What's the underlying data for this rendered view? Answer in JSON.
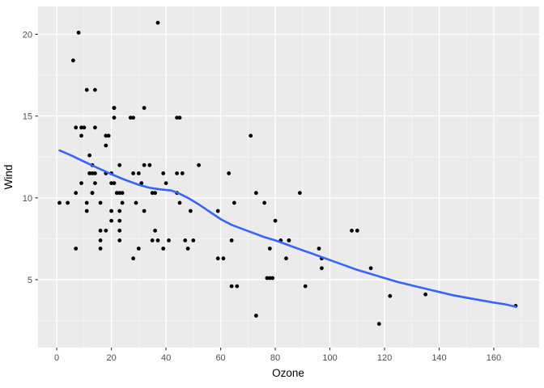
{
  "chart_data": {
    "type": "scatter",
    "title": "",
    "xlabel": "Ozone",
    "ylabel": "Wind",
    "xlim": [
      -6.85,
      176.6
    ],
    "ylim": [
      0.85,
      21.7
    ],
    "x_ticks": [
      0,
      20,
      40,
      60,
      80,
      100,
      120,
      140,
      160
    ],
    "x_minor_ticks": [
      10,
      30,
      50,
      70,
      90,
      110,
      130,
      150,
      170
    ],
    "y_ticks": [
      5,
      10,
      15,
      20
    ],
    "y_minor_ticks": [
      2.5,
      7.5,
      12.5,
      17.5
    ],
    "grid": true,
    "legend": "none",
    "points": [
      [
        41,
        7.4
      ],
      [
        36,
        8.0
      ],
      [
        12,
        12.6
      ],
      [
        18,
        11.5
      ],
      [
        28,
        14.9
      ],
      [
        23,
        8.6
      ],
      [
        19,
        13.8
      ],
      [
        8,
        20.1
      ],
      [
        7,
        6.9
      ],
      [
        16,
        9.7
      ],
      [
        11,
        9.2
      ],
      [
        14,
        10.9
      ],
      [
        18,
        13.2
      ],
      [
        14,
        11.5
      ],
      [
        34,
        12.0
      ],
      [
        6,
        18.4
      ],
      [
        30,
        11.5
      ],
      [
        11,
        9.7
      ],
      [
        1,
        9.7
      ],
      [
        11,
        16.6
      ],
      [
        4,
        9.7
      ],
      [
        32,
        12.0
      ],
      [
        23,
        12.0
      ],
      [
        45,
        14.9
      ],
      [
        115,
        5.7
      ],
      [
        37,
        7.4
      ],
      [
        29,
        9.7
      ],
      [
        71,
        13.8
      ],
      [
        39,
        11.5
      ],
      [
        23,
        8.0
      ],
      [
        21,
        14.9
      ],
      [
        37,
        20.7
      ],
      [
        20,
        9.2
      ],
      [
        12,
        11.5
      ],
      [
        13,
        10.3
      ],
      [
        135,
        4.1
      ],
      [
        49,
        9.2
      ],
      [
        32,
        9.2
      ],
      [
        64,
        4.6
      ],
      [
        40,
        10.9
      ],
      [
        77,
        5.1
      ],
      [
        97,
        6.3
      ],
      [
        97,
        5.7
      ],
      [
        85,
        7.4
      ],
      [
        10,
        14.3
      ],
      [
        27,
        14.9
      ],
      [
        7,
        14.3
      ],
      [
        48,
        6.9
      ],
      [
        35,
        10.3
      ],
      [
        61,
        6.3
      ],
      [
        79,
        5.1
      ],
      [
        63,
        11.5
      ],
      [
        16,
        6.9
      ],
      [
        80,
        8.6
      ],
      [
        108,
        8.0
      ],
      [
        20,
        8.6
      ],
      [
        52,
        12.0
      ],
      [
        82,
        7.4
      ],
      [
        50,
        7.4
      ],
      [
        64,
        7.4
      ],
      [
        59,
        9.2
      ],
      [
        39,
        6.9
      ],
      [
        9,
        13.8
      ],
      [
        16,
        7.4
      ],
      [
        78,
        6.9
      ],
      [
        35,
        7.4
      ],
      [
        66,
        4.6
      ],
      [
        122,
        4.0
      ],
      [
        89,
        10.3
      ],
      [
        110,
        8.0
      ],
      [
        44,
        11.5
      ],
      [
        28,
        11.5
      ],
      [
        65,
        9.7
      ],
      [
        22,
        10.3
      ],
      [
        59,
        6.3
      ],
      [
        23,
        7.4
      ],
      [
        31,
        10.9
      ],
      [
        44,
        10.3
      ],
      [
        21,
        15.5
      ],
      [
        9,
        14.3
      ],
      [
        45,
        9.7
      ],
      [
        168,
        3.4
      ],
      [
        73,
        10.3
      ],
      [
        76,
        9.7
      ],
      [
        118,
        2.3
      ],
      [
        84,
        6.3
      ],
      [
        85,
        7.4
      ],
      [
        96,
        6.9
      ],
      [
        78,
        5.1
      ],
      [
        73,
        2.8
      ],
      [
        91,
        4.6
      ],
      [
        47,
        7.4
      ],
      [
        32,
        15.5
      ],
      [
        20,
        10.9
      ],
      [
        23,
        10.3
      ],
      [
        21,
        10.9
      ],
      [
        24,
        9.7
      ],
      [
        44,
        14.9
      ],
      [
        21,
        15.5
      ],
      [
        28,
        6.3
      ],
      [
        9,
        10.9
      ],
      [
        13,
        11.5
      ],
      [
        46,
        11.5
      ],
      [
        18,
        13.8
      ],
      [
        13,
        10.3
      ],
      [
        24,
        10.3
      ],
      [
        16,
        8.0
      ],
      [
        13,
        12.0
      ],
      [
        23,
        9.2
      ],
      [
        36,
        10.3
      ],
      [
        7,
        10.3
      ],
      [
        14,
        16.6
      ],
      [
        30,
        6.9
      ],
      [
        14,
        14.3
      ],
      [
        18,
        8.0
      ],
      [
        20,
        11.5
      ]
    ],
    "smooth_line": {
      "name": "loess-smooth",
      "points": [
        [
          1,
          12.9
        ],
        [
          5,
          12.62
        ],
        [
          10,
          12.22
        ],
        [
          15,
          11.83
        ],
        [
          20,
          11.45
        ],
        [
          25,
          11.1
        ],
        [
          30,
          10.8
        ],
        [
          34,
          10.62
        ],
        [
          38,
          10.52
        ],
        [
          42,
          10.45
        ],
        [
          45,
          10.25
        ],
        [
          48,
          10.0
        ],
        [
          52,
          9.6
        ],
        [
          56,
          9.15
        ],
        [
          60,
          8.7
        ],
        [
          64,
          8.35
        ],
        [
          68,
          8.1
        ],
        [
          72,
          7.85
        ],
        [
          76,
          7.6
        ],
        [
          80,
          7.4
        ],
        [
          85,
          7.1
        ],
        [
          90,
          6.8
        ],
        [
          95,
          6.5
        ],
        [
          100,
          6.2
        ],
        [
          105,
          5.9
        ],
        [
          110,
          5.6
        ],
        [
          115,
          5.35
        ],
        [
          120,
          5.1
        ],
        [
          125,
          4.85
        ],
        [
          130,
          4.65
        ],
        [
          135,
          4.45
        ],
        [
          140,
          4.25
        ],
        [
          145,
          4.05
        ],
        [
          150,
          3.9
        ],
        [
          155,
          3.75
        ],
        [
          160,
          3.6
        ],
        [
          164,
          3.5
        ],
        [
          168,
          3.35
        ]
      ]
    },
    "colors": {
      "panel_background": "#EBEBEB",
      "grid_major": "#FFFFFF",
      "grid_minor": "#F4F4F4",
      "point": "#000000",
      "smooth_line": "#3366FF",
      "tick_mark": "#333333",
      "tick_label": "#4D4D4D",
      "axis_title": "#000000",
      "page_background": "#FFFFFF"
    }
  }
}
